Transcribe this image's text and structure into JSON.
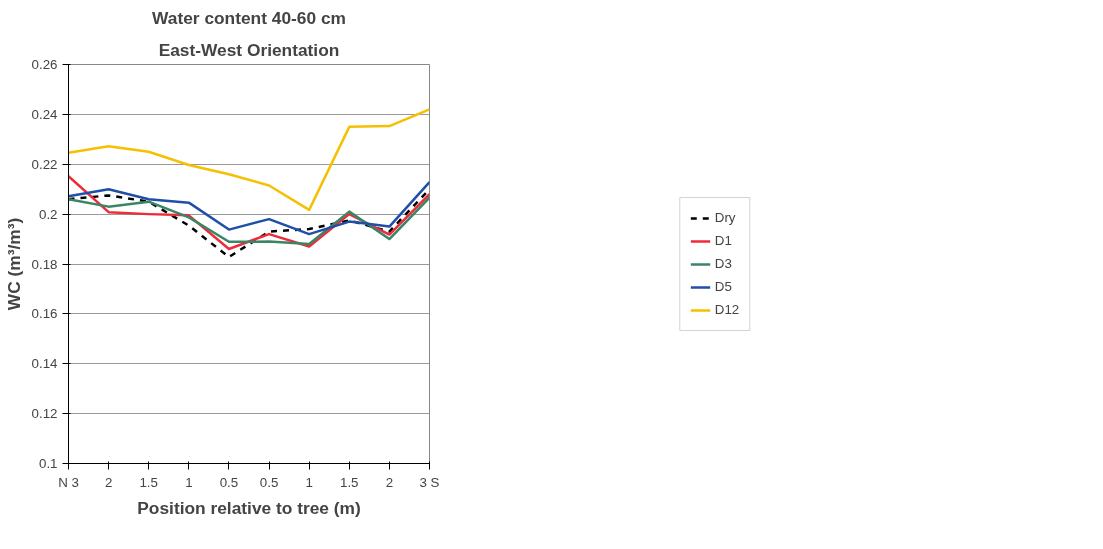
{
  "chart_data": {
    "type": "line",
    "title": "Water content 40-60 cm",
    "subtitle": "East-West Orientation",
    "xlabel": "Position relative to tree (m)",
    "ylabel": "WC (m³/m³)",
    "categories": [
      "N 3",
      "2",
      "1.5",
      "1",
      "0.5",
      "0.5",
      "1",
      "1.5",
      "2",
      "3 S"
    ],
    "ylim": [
      0.1,
      0.26
    ],
    "yticks": [
      0.1,
      0.12,
      0.14,
      0.16,
      0.18,
      0.2,
      0.22,
      0.24,
      0.26
    ],
    "grid": "y",
    "legend": "right",
    "marker": "none",
    "series": [
      {
        "name": "Dry",
        "color": "#000000",
        "line_style": "dashed",
        "values": [
          0.206,
          0.2075,
          0.205,
          0.1954,
          0.1828,
          0.193,
          0.194,
          0.1975,
          0.193,
          0.21
        ]
      },
      {
        "name": "D1",
        "color": "#ee2b3b",
        "line_style": "solid",
        "values": [
          0.2152,
          0.2008,
          0.2,
          0.1995,
          0.186,
          0.192,
          0.187,
          0.2,
          0.1918,
          0.208
        ]
      },
      {
        "name": "D3",
        "color": "#3a8566",
        "line_style": "solid",
        "values": [
          0.206,
          0.203,
          0.205,
          0.1987,
          0.1889,
          0.189,
          0.188,
          0.201,
          0.19,
          0.2066
        ]
      },
      {
        "name": "D5",
        "color": "#1f4fa8",
        "line_style": "solid",
        "values": [
          0.2072,
          0.21,
          0.206,
          0.2046,
          0.1938,
          0.198,
          0.192,
          0.197,
          0.195,
          0.2128
        ]
      },
      {
        "name": "D12",
        "color": "#f5c000",
        "line_style": "solid",
        "values": [
          0.2246,
          0.2272,
          0.225,
          0.2197,
          0.216,
          0.2115,
          0.2017,
          0.235,
          0.2353,
          0.242
        ]
      }
    ]
  }
}
